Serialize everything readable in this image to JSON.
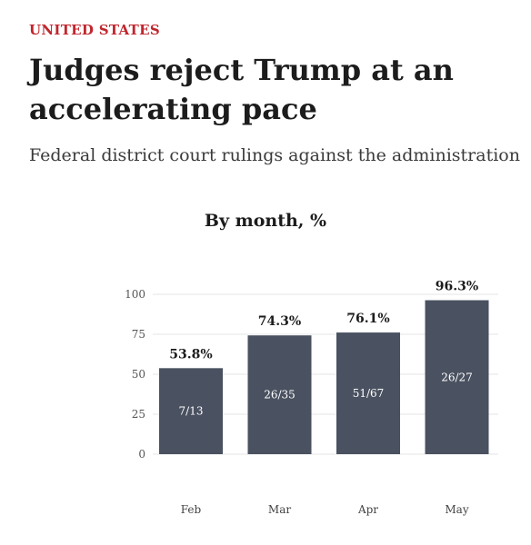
{
  "header": {
    "kicker": "UNITED STATES",
    "title": "Judges reject Trump at an accelerating pace",
    "subtitle": "Federal district court rulings against the administration"
  },
  "colors": {
    "accent": "#c0262d",
    "bar": "#4a5160",
    "text": "#1c1c1c",
    "grid": "#e6e6e6"
  },
  "chart_data": {
    "type": "bar",
    "title": "By month, %",
    "xlabel": "",
    "ylabel": "",
    "categories": [
      "Feb",
      "Mar",
      "Apr",
      "May"
    ],
    "values": [
      53.8,
      74.3,
      76.1,
      96.3
    ],
    "value_labels": [
      "53.8%",
      "74.3%",
      "76.1%",
      "96.3%"
    ],
    "inner_labels": [
      "7/13",
      "26/35",
      "51/67",
      "26/27"
    ],
    "ylim": [
      0,
      100
    ],
    "yticks": [
      0,
      25,
      50,
      75,
      100
    ],
    "grid": true,
    "legend": "none"
  }
}
